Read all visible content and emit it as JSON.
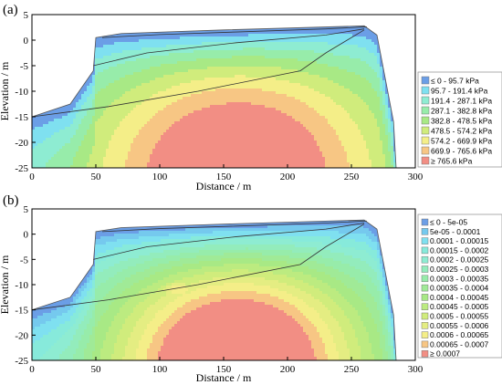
{
  "chart_data": [
    {
      "panel_label": "(a)",
      "type": "heatmap",
      "subtype": "contour",
      "xlabel": "Distance / m",
      "ylabel": "Elevation / m",
      "xlim": [
        0,
        300
      ],
      "ylim": [
        -25,
        5
      ],
      "xticks": [
        "0",
        "50",
        "100",
        "150",
        "200",
        "250",
        "300"
      ],
      "yticks": [
        "5",
        "0",
        "-5",
        "-10",
        "-15",
        "-20",
        "-25"
      ],
      "legend_position": "right",
      "levels": [
        "≤ 0 - 95.7 kPa",
        "95.7 - 191.4 kPa",
        "191.4 - 287.1 kPa",
        "287.1 - 382.8 kPa",
        "382.8 - 478.5 kPa",
        "478.5 - 574.2 kPa",
        "574.2 - 669.9 kPa",
        "669.9 - 765.6 kPa",
        "≥ 765.6 kPa"
      ],
      "colors": [
        "#6b9ee6",
        "#7fe0f0",
        "#8eecd2",
        "#97ecaa",
        "#a8e985",
        "#d0ec7c",
        "#f4ee88",
        "#f7c684",
        "#f28e84"
      ],
      "geometry": {
        "ground_surface": [
          [
            0,
            -15
          ],
          [
            30,
            -12.5
          ],
          [
            48,
            -6
          ],
          [
            50,
            0.5
          ],
          [
            70,
            1.3
          ],
          [
            150,
            2
          ],
          [
            260,
            2.8
          ],
          [
            270,
            1
          ],
          [
            283,
            -16
          ],
          [
            285,
            -25
          ]
        ],
        "interfaces": [
          [
            [
              0,
              -15
            ],
            [
              60,
              -13
            ],
            [
              130,
              -10
            ],
            [
              210,
              -6
            ],
            [
              230,
              -2.5
            ],
            [
              260,
              2
            ]
          ],
          [
            [
              48,
              -5
            ],
            [
              90,
              -2.5
            ],
            [
              160,
              -0.5
            ],
            [
              230,
              1
            ],
            [
              260,
              2.2
            ]
          ],
          [
            [
              55,
              0.5
            ],
            [
              100,
              1.1
            ],
            [
              160,
              1.6
            ],
            [
              230,
              2.2
            ],
            [
              262,
              2.6
            ]
          ]
        ]
      },
      "field": {
        "surface_value": 0,
        "peak_value": 800,
        "peak_location": [
          160,
          -27
        ],
        "spread": [
          125,
          35
        ]
      }
    },
    {
      "panel_label": "(b)",
      "type": "heatmap",
      "subtype": "contour",
      "xlabel": "Distance / m",
      "ylabel": "Elevation / m",
      "xlim": [
        0,
        300
      ],
      "ylim": [
        -25,
        5
      ],
      "xticks": [
        "0",
        "50",
        "100",
        "150",
        "200",
        "250",
        "300"
      ],
      "yticks": [
        "5",
        "0",
        "-5",
        "-10",
        "-15",
        "-20",
        "-25"
      ],
      "legend_position": "right",
      "levels": [
        "≤ 0 - 5e-05",
        "5e-05 - 0.0001",
        "0.0001 - 0.00015",
        "0.00015 - 0.0002",
        "0.0002 - 0.00025",
        "0.00025 - 0.0003",
        "0.0003 - 0.00035",
        "0.00035 - 0.0004",
        "0.0004 - 0.00045",
        "0.00045 - 0.0005",
        "0.0005 - 0.00055",
        "0.00055 - 0.0006",
        "0.0006 - 0.00065",
        "0.00065 - 0.0007",
        "≥ 0.0007"
      ],
      "colors": [
        "#6b9ee6",
        "#75c9ee",
        "#7fe0f0",
        "#87eadb",
        "#8eecd2",
        "#93ecbc",
        "#97ecaa",
        "#a0ea97",
        "#a8e985",
        "#bceb80",
        "#d0ec7c",
        "#e4ed82",
        "#f4ee88",
        "#f7c684",
        "#f28e84"
      ],
      "geometry": {
        "ground_surface": [
          [
            0,
            -15
          ],
          [
            30,
            -12.5
          ],
          [
            48,
            -6
          ],
          [
            50,
            0.5
          ],
          [
            70,
            1.3
          ],
          [
            150,
            2
          ],
          [
            260,
            2.8
          ],
          [
            270,
            1
          ],
          [
            283,
            -16
          ],
          [
            285,
            -25
          ]
        ],
        "interfaces": [
          [
            [
              0,
              -15
            ],
            [
              60,
              -13
            ],
            [
              130,
              -10
            ],
            [
              210,
              -6
            ],
            [
              230,
              -2.5
            ],
            [
              260,
              2
            ]
          ],
          [
            [
              48,
              -5
            ],
            [
              90,
              -2.5
            ],
            [
              160,
              -0.5
            ],
            [
              230,
              1
            ],
            [
              260,
              2.2
            ]
          ],
          [
            [
              55,
              0.5
            ],
            [
              100,
              1.1
            ],
            [
              160,
              1.6
            ],
            [
              230,
              2.2
            ],
            [
              262,
              2.6
            ]
          ]
        ]
      },
      "field": {
        "surface_value": 0,
        "peak_value": 0.00075,
        "peak_location": [
          160,
          -26
        ],
        "spread": [
          110,
          30
        ],
        "secondary_peak_value": 0.00066,
        "secondary_peak_location": [
          115,
          -11
        ],
        "secondary_spread": [
          28,
          3
        ]
      }
    }
  ]
}
